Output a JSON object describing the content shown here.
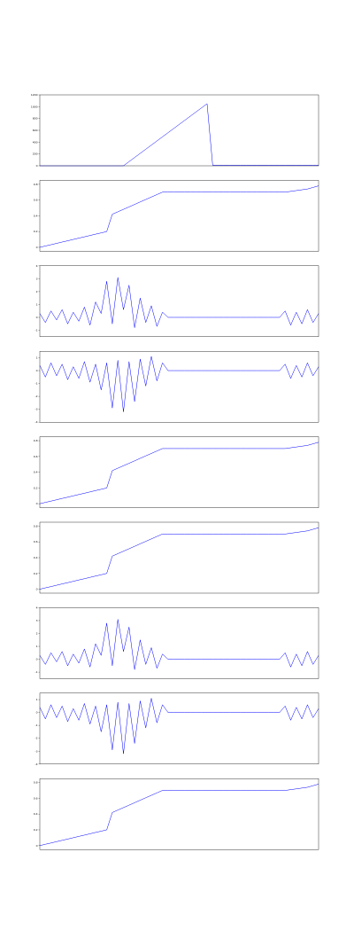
{
  "chart_data": [
    {
      "type": "line",
      "color": "#0000ff",
      "ylim": [
        0,
        1200
      ],
      "yticks": [
        0,
        200,
        400,
        600,
        800,
        1000,
        1200
      ],
      "x": [
        0,
        2,
        4,
        6,
        8,
        10,
        12,
        14,
        16,
        18,
        20,
        22,
        24,
        26,
        28,
        30,
        32,
        34,
        36,
        38,
        40,
        42,
        44,
        46,
        48,
        50,
        52,
        54,
        56,
        58,
        60,
        62,
        64,
        66,
        68,
        70,
        72,
        74,
        76,
        78,
        80,
        82,
        84,
        86,
        88,
        90,
        92,
        94,
        96,
        98,
        100
      ],
      "values": [
        0,
        0,
        0,
        0,
        0,
        0,
        0,
        0,
        0,
        0,
        0,
        0,
        0,
        0,
        0,
        0,
        70,
        140,
        210,
        280,
        350,
        420,
        490,
        560,
        630,
        700,
        770,
        840,
        910,
        980,
        1050,
        10,
        10,
        10,
        10,
        10,
        10,
        10,
        10,
        10,
        10,
        10,
        10,
        10,
        10,
        10,
        10,
        10,
        10,
        10,
        10
      ]
    },
    {
      "type": "line",
      "color": "#0000ff",
      "ylim": [
        -0.05,
        0.85
      ],
      "yticks": [
        0,
        0.2,
        0.4,
        0.6,
        0.8
      ],
      "x": [
        0,
        2,
        4,
        6,
        8,
        10,
        12,
        14,
        16,
        18,
        20,
        22,
        24,
        26,
        28,
        30,
        32,
        34,
        36,
        38,
        40,
        42,
        44,
        46,
        48,
        50,
        52,
        54,
        56,
        58,
        60,
        62,
        64,
        66,
        68,
        70,
        72,
        74,
        76,
        78,
        80,
        82,
        84,
        86,
        88,
        90,
        92,
        94,
        96,
        98,
        100
      ],
      "values": [
        0,
        0.017,
        0.033,
        0.05,
        0.067,
        0.083,
        0.1,
        0.117,
        0.133,
        0.15,
        0.167,
        0.183,
        0.2,
        0.42,
        0.451,
        0.482,
        0.513,
        0.544,
        0.576,
        0.607,
        0.638,
        0.669,
        0.7,
        0.7,
        0.7,
        0.7,
        0.7,
        0.7,
        0.7,
        0.7,
        0.7,
        0.7,
        0.7,
        0.7,
        0.7,
        0.7,
        0.7,
        0.7,
        0.7,
        0.7,
        0.7,
        0.7,
        0.7,
        0.7,
        0.7,
        0.71,
        0.72,
        0.73,
        0.74,
        0.76,
        0.78
      ]
    },
    {
      "type": "line",
      "color": "#0000ff",
      "ylim": [
        -1.5,
        4
      ],
      "yticks": [
        -1,
        0,
        1,
        2,
        3,
        4
      ],
      "x": [
        0,
        2,
        4,
        6,
        8,
        10,
        12,
        14,
        16,
        18,
        20,
        22,
        24,
        26,
        28,
        30,
        32,
        34,
        36,
        38,
        40,
        42,
        44,
        46,
        48,
        50,
        52,
        54,
        56,
        58,
        60,
        62,
        64,
        66,
        68,
        70,
        72,
        74,
        76,
        78,
        80,
        82,
        84,
        86,
        88,
        90,
        92,
        94,
        96,
        98,
        100
      ],
      "values": [
        0.3,
        -0.4,
        0.5,
        -0.2,
        0.6,
        -0.5,
        0.4,
        -0.3,
        0.8,
        -0.6,
        1.2,
        0.3,
        2.8,
        -0.5,
        3.1,
        0.6,
        2.5,
        -0.8,
        1.5,
        -0.4,
        0.9,
        -0.7,
        0.4,
        0,
        0,
        0,
        0,
        0,
        0,
        0,
        0,
        0,
        0,
        0,
        0,
        0,
        0,
        0,
        0,
        0,
        0,
        0,
        0,
        0,
        0.5,
        -0.6,
        0.4,
        -0.5,
        0.6,
        -0.4,
        0.3
      ]
    },
    {
      "type": "line",
      "color": "#0000ff",
      "ylim": [
        -4,
        1.5
      ],
      "yticks": [
        -4,
        -3,
        -2,
        -1,
        0,
        1
      ],
      "x": [
        0,
        2,
        4,
        6,
        8,
        10,
        12,
        14,
        16,
        18,
        20,
        22,
        24,
        26,
        28,
        30,
        32,
        34,
        36,
        38,
        40,
        42,
        44,
        46,
        48,
        50,
        52,
        54,
        56,
        58,
        60,
        62,
        64,
        66,
        68,
        70,
        72,
        74,
        76,
        78,
        80,
        82,
        84,
        86,
        88,
        90,
        92,
        94,
        96,
        98,
        100
      ],
      "values": [
        0.4,
        -0.5,
        0.6,
        -0.4,
        0.5,
        -0.7,
        0.3,
        -0.6,
        0.7,
        -0.9,
        0.5,
        -1.5,
        0.6,
        -2.9,
        0.8,
        -3.2,
        0.7,
        -2.4,
        0.9,
        -1.2,
        1.1,
        -0.8,
        0.6,
        0,
        0,
        0,
        0,
        0,
        0,
        0,
        0,
        0,
        0,
        0,
        0,
        0,
        0,
        0,
        0,
        0,
        0,
        0,
        0,
        0,
        0.5,
        -0.6,
        0.4,
        -0.5,
        0.6,
        -0.4,
        0.3
      ]
    },
    {
      "type": "line",
      "color": "#0000ff",
      "ylim": [
        -0.05,
        0.85
      ],
      "yticks": [
        0,
        0.2,
        0.4,
        0.6,
        0.8
      ],
      "x": [
        0,
        2,
        4,
        6,
        8,
        10,
        12,
        14,
        16,
        18,
        20,
        22,
        24,
        26,
        28,
        30,
        32,
        34,
        36,
        38,
        40,
        42,
        44,
        46,
        48,
        50,
        52,
        54,
        56,
        58,
        60,
        62,
        64,
        66,
        68,
        70,
        72,
        74,
        76,
        78,
        80,
        82,
        84,
        86,
        88,
        90,
        92,
        94,
        96,
        98,
        100
      ],
      "values": [
        0,
        0.017,
        0.033,
        0.05,
        0.067,
        0.083,
        0.1,
        0.117,
        0.133,
        0.15,
        0.167,
        0.183,
        0.2,
        0.42,
        0.451,
        0.482,
        0.513,
        0.544,
        0.576,
        0.607,
        0.638,
        0.669,
        0.7,
        0.7,
        0.7,
        0.7,
        0.7,
        0.7,
        0.7,
        0.7,
        0.7,
        0.7,
        0.7,
        0.7,
        0.7,
        0.7,
        0.7,
        0.7,
        0.7,
        0.7,
        0.7,
        0.7,
        0.7,
        0.7,
        0.7,
        0.71,
        0.72,
        0.73,
        0.74,
        0.76,
        0.78
      ]
    },
    {
      "type": "line",
      "color": "#0000ff",
      "ylim": [
        -0.05,
        0.85
      ],
      "yticks": [
        0,
        0.2,
        0.4,
        0.6,
        0.8
      ],
      "x": [
        0,
        2,
        4,
        6,
        8,
        10,
        12,
        14,
        16,
        18,
        20,
        22,
        24,
        26,
        28,
        30,
        32,
        34,
        36,
        38,
        40,
        42,
        44,
        46,
        48,
        50,
        52,
        54,
        56,
        58,
        60,
        62,
        64,
        66,
        68,
        70,
        72,
        74,
        76,
        78,
        80,
        82,
        84,
        86,
        88,
        90,
        92,
        94,
        96,
        98,
        100
      ],
      "values": [
        0,
        0.017,
        0.033,
        0.05,
        0.067,
        0.083,
        0.1,
        0.117,
        0.133,
        0.15,
        0.167,
        0.183,
        0.2,
        0.42,
        0.451,
        0.482,
        0.513,
        0.544,
        0.576,
        0.607,
        0.638,
        0.669,
        0.7,
        0.7,
        0.7,
        0.7,
        0.7,
        0.7,
        0.7,
        0.7,
        0.7,
        0.7,
        0.7,
        0.7,
        0.7,
        0.7,
        0.7,
        0.7,
        0.7,
        0.7,
        0.7,
        0.7,
        0.7,
        0.7,
        0.7,
        0.71,
        0.72,
        0.73,
        0.74,
        0.76,
        0.78
      ]
    },
    {
      "type": "line",
      "color": "#0000ff",
      "ylim": [
        -1.5,
        4
      ],
      "yticks": [
        -1,
        0,
        1,
        2,
        3,
        4
      ],
      "x": [
        0,
        2,
        4,
        6,
        8,
        10,
        12,
        14,
        16,
        18,
        20,
        22,
        24,
        26,
        28,
        30,
        32,
        34,
        36,
        38,
        40,
        42,
        44,
        46,
        48,
        50,
        52,
        54,
        56,
        58,
        60,
        62,
        64,
        66,
        68,
        70,
        72,
        74,
        76,
        78,
        80,
        82,
        84,
        86,
        88,
        90,
        92,
        94,
        96,
        98,
        100
      ],
      "values": [
        0.3,
        -0.4,
        0.5,
        -0.2,
        0.6,
        -0.5,
        0.4,
        -0.3,
        0.8,
        -0.6,
        1.2,
        0.3,
        2.8,
        -0.5,
        3.1,
        0.6,
        2.5,
        -0.8,
        1.5,
        -0.4,
        0.9,
        -0.7,
        0.4,
        0,
        0,
        0,
        0,
        0,
        0,
        0,
        0,
        0,
        0,
        0,
        0,
        0,
        0,
        0,
        0,
        0,
        0,
        0,
        0,
        0,
        0.5,
        -0.6,
        0.4,
        -0.5,
        0.6,
        -0.4,
        0.3
      ]
    },
    {
      "type": "line",
      "color": "#0000ff",
      "ylim": [
        -4,
        1.5
      ],
      "yticks": [
        -4,
        -3,
        -2,
        -1,
        0,
        1
      ],
      "x": [
        0,
        2,
        4,
        6,
        8,
        10,
        12,
        14,
        16,
        18,
        20,
        22,
        24,
        26,
        28,
        30,
        32,
        34,
        36,
        38,
        40,
        42,
        44,
        46,
        48,
        50,
        52,
        54,
        56,
        58,
        60,
        62,
        64,
        66,
        68,
        70,
        72,
        74,
        76,
        78,
        80,
        82,
        84,
        86,
        88,
        90,
        92,
        94,
        96,
        98,
        100
      ],
      "values": [
        0.4,
        -0.5,
        0.6,
        -0.4,
        0.5,
        -0.7,
        0.3,
        -0.6,
        0.7,
        -0.9,
        0.5,
        -1.5,
        0.6,
        -2.9,
        0.8,
        -3.2,
        0.7,
        -2.4,
        0.9,
        -1.2,
        1.1,
        -0.8,
        0.6,
        0,
        0,
        0,
        0,
        0,
        0,
        0,
        0,
        0,
        0,
        0,
        0,
        0,
        0,
        0,
        0,
        0,
        0,
        0,
        0,
        0,
        0.5,
        -0.6,
        0.4,
        -0.5,
        0.6,
        -0.4,
        0.3
      ]
    },
    {
      "type": "line",
      "color": "#0000ff",
      "ylim": [
        -0.05,
        0.85
      ],
      "yticks": [
        0,
        0.2,
        0.4,
        0.6,
        0.8
      ],
      "x": [
        0,
        2,
        4,
        6,
        8,
        10,
        12,
        14,
        16,
        18,
        20,
        22,
        24,
        26,
        28,
        30,
        32,
        34,
        36,
        38,
        40,
        42,
        44,
        46,
        48,
        50,
        52,
        54,
        56,
        58,
        60,
        62,
        64,
        66,
        68,
        70,
        72,
        74,
        76,
        78,
        80,
        82,
        84,
        86,
        88,
        90,
        92,
        94,
        96,
        98,
        100
      ],
      "values": [
        0,
        0.017,
        0.033,
        0.05,
        0.067,
        0.083,
        0.1,
        0.117,
        0.133,
        0.15,
        0.167,
        0.183,
        0.2,
        0.42,
        0.451,
        0.482,
        0.513,
        0.544,
        0.576,
        0.607,
        0.638,
        0.669,
        0.7,
        0.7,
        0.7,
        0.7,
        0.7,
        0.7,
        0.7,
        0.7,
        0.7,
        0.7,
        0.7,
        0.7,
        0.7,
        0.7,
        0.7,
        0.7,
        0.7,
        0.7,
        0.7,
        0.7,
        0.7,
        0.7,
        0.7,
        0.71,
        0.72,
        0.73,
        0.74,
        0.76,
        0.78
      ]
    }
  ]
}
